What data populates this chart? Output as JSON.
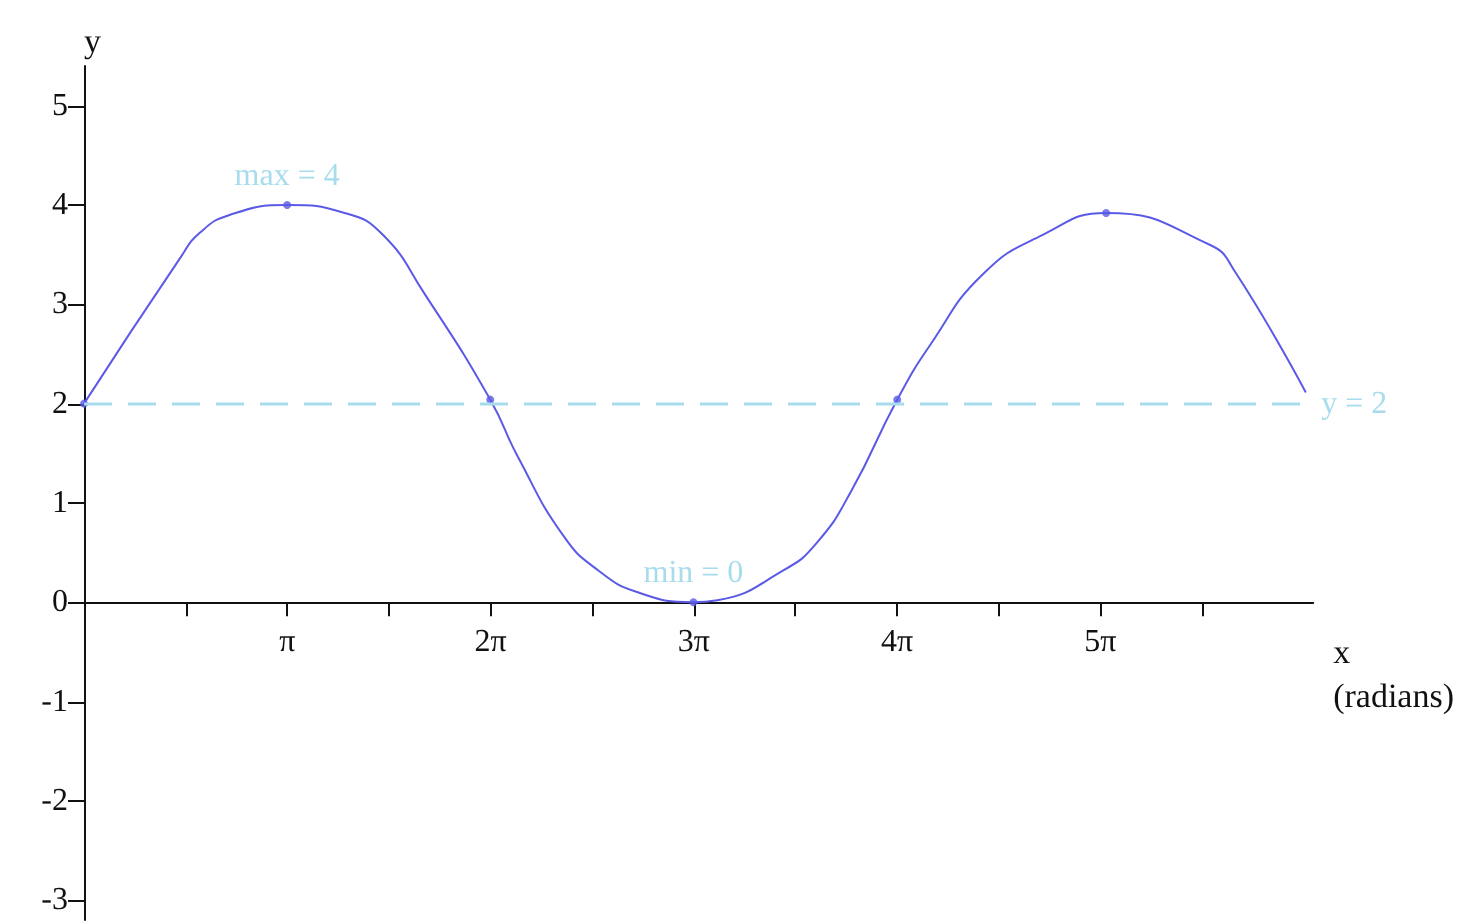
{
  "chart_data": {
    "type": "line",
    "xlabel": "x (radians)",
    "ylabel": "y",
    "series": [
      {
        "color": "#5a5ae6",
        "x": [
          0,
          1.48,
          1.79,
          2.25,
          3.14,
          4.03,
          4.62,
          5.27,
          6.28,
          6.71,
          7.42,
          7.95,
          8.56,
          9.42,
          9.79,
          10.81,
          11.33,
          11.86,
          12.57,
          13.09,
          13.89,
          14.82,
          15.8,
          17.4,
          17.8,
          18.88
        ],
        "values": [
          2,
          3.46,
          3.72,
          3.9,
          4,
          3.92,
          3.7,
          3.1,
          2.04,
          1.46,
          0.66,
          0.32,
          0.1,
          0,
          0.02,
          0.32,
          0.6,
          1.12,
          2.04,
          2.6,
          3.3,
          3.7,
          3.92,
          3.6,
          3.32,
          2.12
        ]
      },
      {
        "type": "scatter",
        "color": "#5a5ae6",
        "x": [
          0,
          3.14,
          6.28,
          9.42,
          12.57,
          15.8
        ],
        "values": [
          2,
          4,
          2.04,
          0,
          2.04,
          3.92
        ]
      }
    ],
    "xlim": [
      0,
      19
    ],
    "ylim": [
      -3.2,
      5.4
    ],
    "xticks": [
      {
        "value": 1.5708,
        "label": null
      },
      {
        "value": 3.1416,
        "label": "π"
      },
      {
        "value": 4.7124,
        "label": null
      },
      {
        "value": 6.2832,
        "label": "2π"
      },
      {
        "value": 7.854,
        "label": null
      },
      {
        "value": 9.4248,
        "label": "3π"
      },
      {
        "value": 10.9956,
        "label": null
      },
      {
        "value": 12.5664,
        "label": "4π"
      },
      {
        "value": 14.1372,
        "label": null
      },
      {
        "value": 15.708,
        "label": "5π"
      },
      {
        "value": 17.2788,
        "label": null
      }
    ],
    "yticks": [
      -3,
      -2,
      -1,
      0,
      1,
      2,
      3,
      4,
      5
    ],
    "ref_lines": [
      {
        "axis": "y",
        "value": 2,
        "label": "y = 2",
        "color": "#a8dcec",
        "line_style": "dashed"
      }
    ],
    "annotations": [
      {
        "text": "max = 4",
        "x": 3.14,
        "y": 4
      },
      {
        "text": "min = 0",
        "x": 9.42,
        "y": 0
      }
    ],
    "grid": false,
    "line_style": "solid"
  }
}
